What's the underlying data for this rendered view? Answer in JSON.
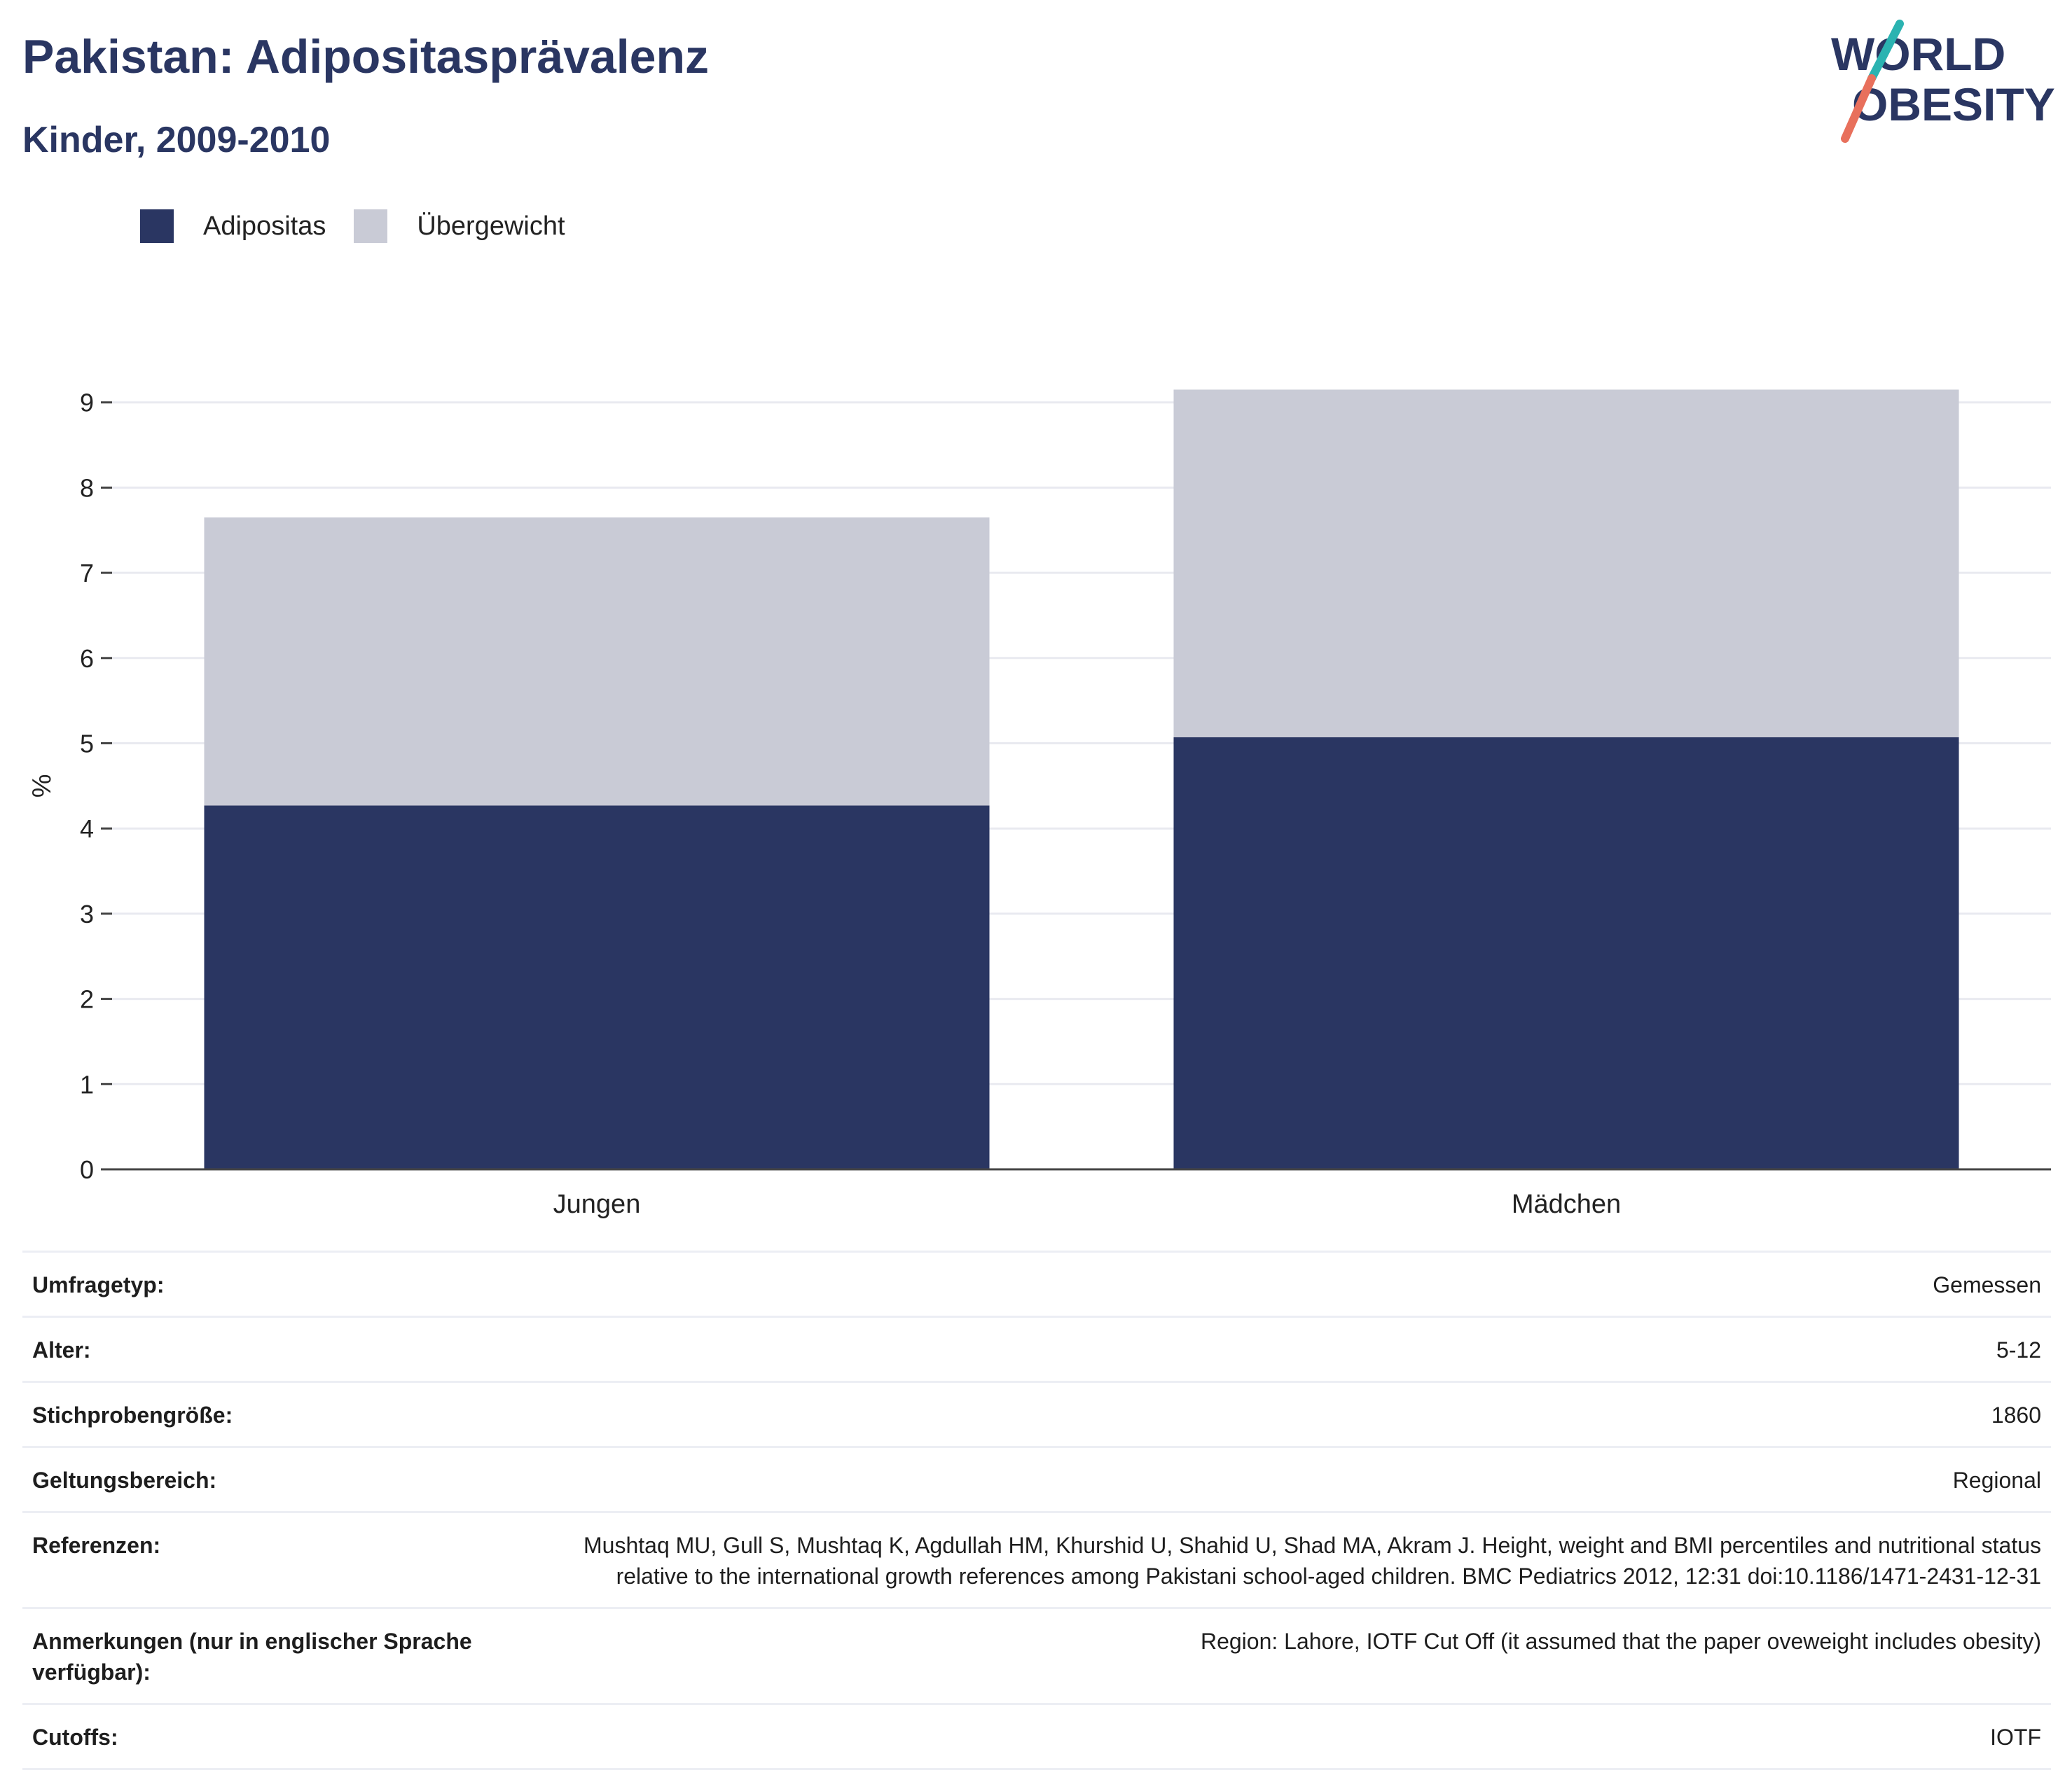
{
  "header": {
    "title": "Pakistan: Adipositasprävalenz",
    "subtitle": "Kinder, 2009-2010"
  },
  "logo": {
    "line1": "WORLD",
    "line2": "OBESITY",
    "colors": {
      "text": "#2a3662",
      "slash_top": "#2bb3b1",
      "slash_bottom": "#e8705c"
    }
  },
  "legend": [
    {
      "label": "Adipositas",
      "color": "#2a3662"
    },
    {
      "label": "Übergewicht",
      "color": "#c9cbd6"
    }
  ],
  "chart_data": {
    "type": "bar",
    "stacked": true,
    "categories": [
      "Jungen",
      "Mädchen"
    ],
    "series": [
      {
        "name": "Adipositas",
        "values": [
          4.27,
          5.07
        ],
        "color": "#2a3662"
      },
      {
        "name": "Übergewicht",
        "values": [
          3.38,
          4.08
        ],
        "color": "#c9cbd6"
      }
    ],
    "ylabel": "%",
    "xlabel": "",
    "ylim": [
      0,
      9.5
    ],
    "yticks": [
      0,
      1,
      2,
      3,
      4,
      5,
      6,
      7,
      8,
      9
    ],
    "grid": true,
    "legend_position": "top-left"
  },
  "details": [
    {
      "label": "Umfragetyp:",
      "value": "Gemessen"
    },
    {
      "label": "Alter:",
      "value": "5-12"
    },
    {
      "label": "Stichprobengröße:",
      "value": "1860"
    },
    {
      "label": "Geltungsbereich:",
      "value": "Regional"
    },
    {
      "label": "Referenzen:",
      "value": "Mushtaq MU, Gull S, Mushtaq K, Agdullah HM, Khurshid U, Shahid U, Shad MA, Akram J. Height, weight and BMI percentiles and nutritional status relative to the international growth references among Pakistani school-aged children. BMC Pediatrics 2012, 12:31 doi:10.1186/1471-2431-12-31"
    },
    {
      "label": "Anmerkungen (nur in englischer Sprache verfügbar):",
      "value": "Region: Lahore, IOTF Cut Off (it assumed that the paper oveweight includes obesity)"
    },
    {
      "label": "Cutoffs:",
      "value": "IOTF"
    }
  ]
}
